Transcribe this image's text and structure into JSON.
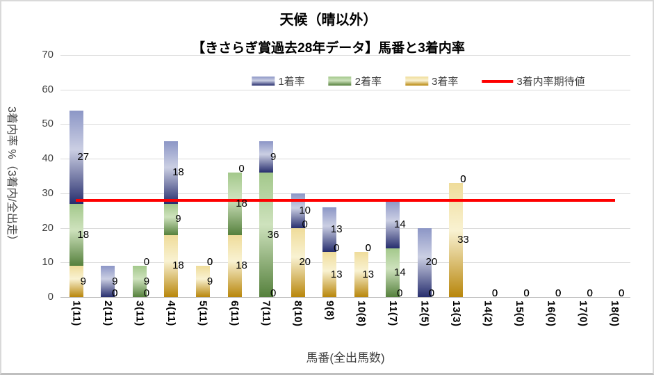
{
  "title": "天候（晴以外）",
  "subtitle": "【きさらぎ賞過去28年データ】馬番と3着内率",
  "legend": {
    "items": [
      {
        "label": "1着率",
        "type": "bar",
        "color_key": "blue"
      },
      {
        "label": "2着率",
        "type": "bar",
        "color_key": "green"
      },
      {
        "label": "3着率",
        "type": "bar",
        "color_key": "gold"
      },
      {
        "label": "3着内率期待値",
        "type": "line",
        "color_key": "red"
      }
    ]
  },
  "axes": {
    "y_title": "3着内率 %（3着内/全出走）",
    "x_title": "馬番(全出馬数)",
    "y_ticks": [
      0,
      10,
      20,
      30,
      40,
      50,
      60,
      70
    ],
    "ylim": [
      0,
      70
    ]
  },
  "colors": {
    "blue": {
      "top": "#8C96C6",
      "mid": "#CBCFE3",
      "bottom": "#272E6E"
    },
    "green": {
      "top": "#A3C88B",
      "mid": "#CEE2BD",
      "bottom": "#55803C"
    },
    "gold": {
      "top": "#EFDC9A",
      "mid": "#F9F2D2",
      "bottom": "#B8860B"
    },
    "red": "#FE0000",
    "gridline": "#D9D9D9",
    "axis_line": "#BFBFBF"
  },
  "chart_data": {
    "type": "bar",
    "stacked": true,
    "grid": true,
    "legend_position": "top",
    "ylim": [
      0,
      70
    ],
    "categories": [
      "1(11)",
      "2(11)",
      "3(11)",
      "4(11)",
      "5(11)",
      "6(11)",
      "7(11)",
      "8(10)",
      "9(8)",
      "10(8)",
      "11(7)",
      "12(5)",
      "13(3)",
      "14(2)",
      "15(0)",
      "16(0)",
      "17(0)",
      "18(0)"
    ],
    "series": [
      {
        "name": "3着率",
        "color_key": "gold",
        "stack_order": 1,
        "values": [
          9,
          0,
          0,
          18,
          9,
          18,
          0,
          20,
          13,
          13,
          0,
          0,
          33,
          0,
          0,
          0,
          0,
          0
        ]
      },
      {
        "name": "2着率",
        "color_key": "green",
        "stack_order": 2,
        "values": [
          18,
          0,
          9,
          9,
          0,
          18,
          36,
          0,
          0,
          0,
          14,
          0,
          0,
          0,
          0,
          0,
          0,
          0
        ]
      },
      {
        "name": "1着率",
        "color_key": "blue",
        "stack_order": 3,
        "values": [
          27,
          9,
          0,
          18,
          0,
          0,
          9,
          10,
          13,
          0,
          14,
          20,
          0,
          0,
          0,
          0,
          0,
          0
        ]
      }
    ],
    "line": {
      "name": "3着内率期待値",
      "value": 28
    },
    "xlabel": "馬番(全出馬数)",
    "ylabel": "3着内率 %（3着内/全出走）"
  }
}
